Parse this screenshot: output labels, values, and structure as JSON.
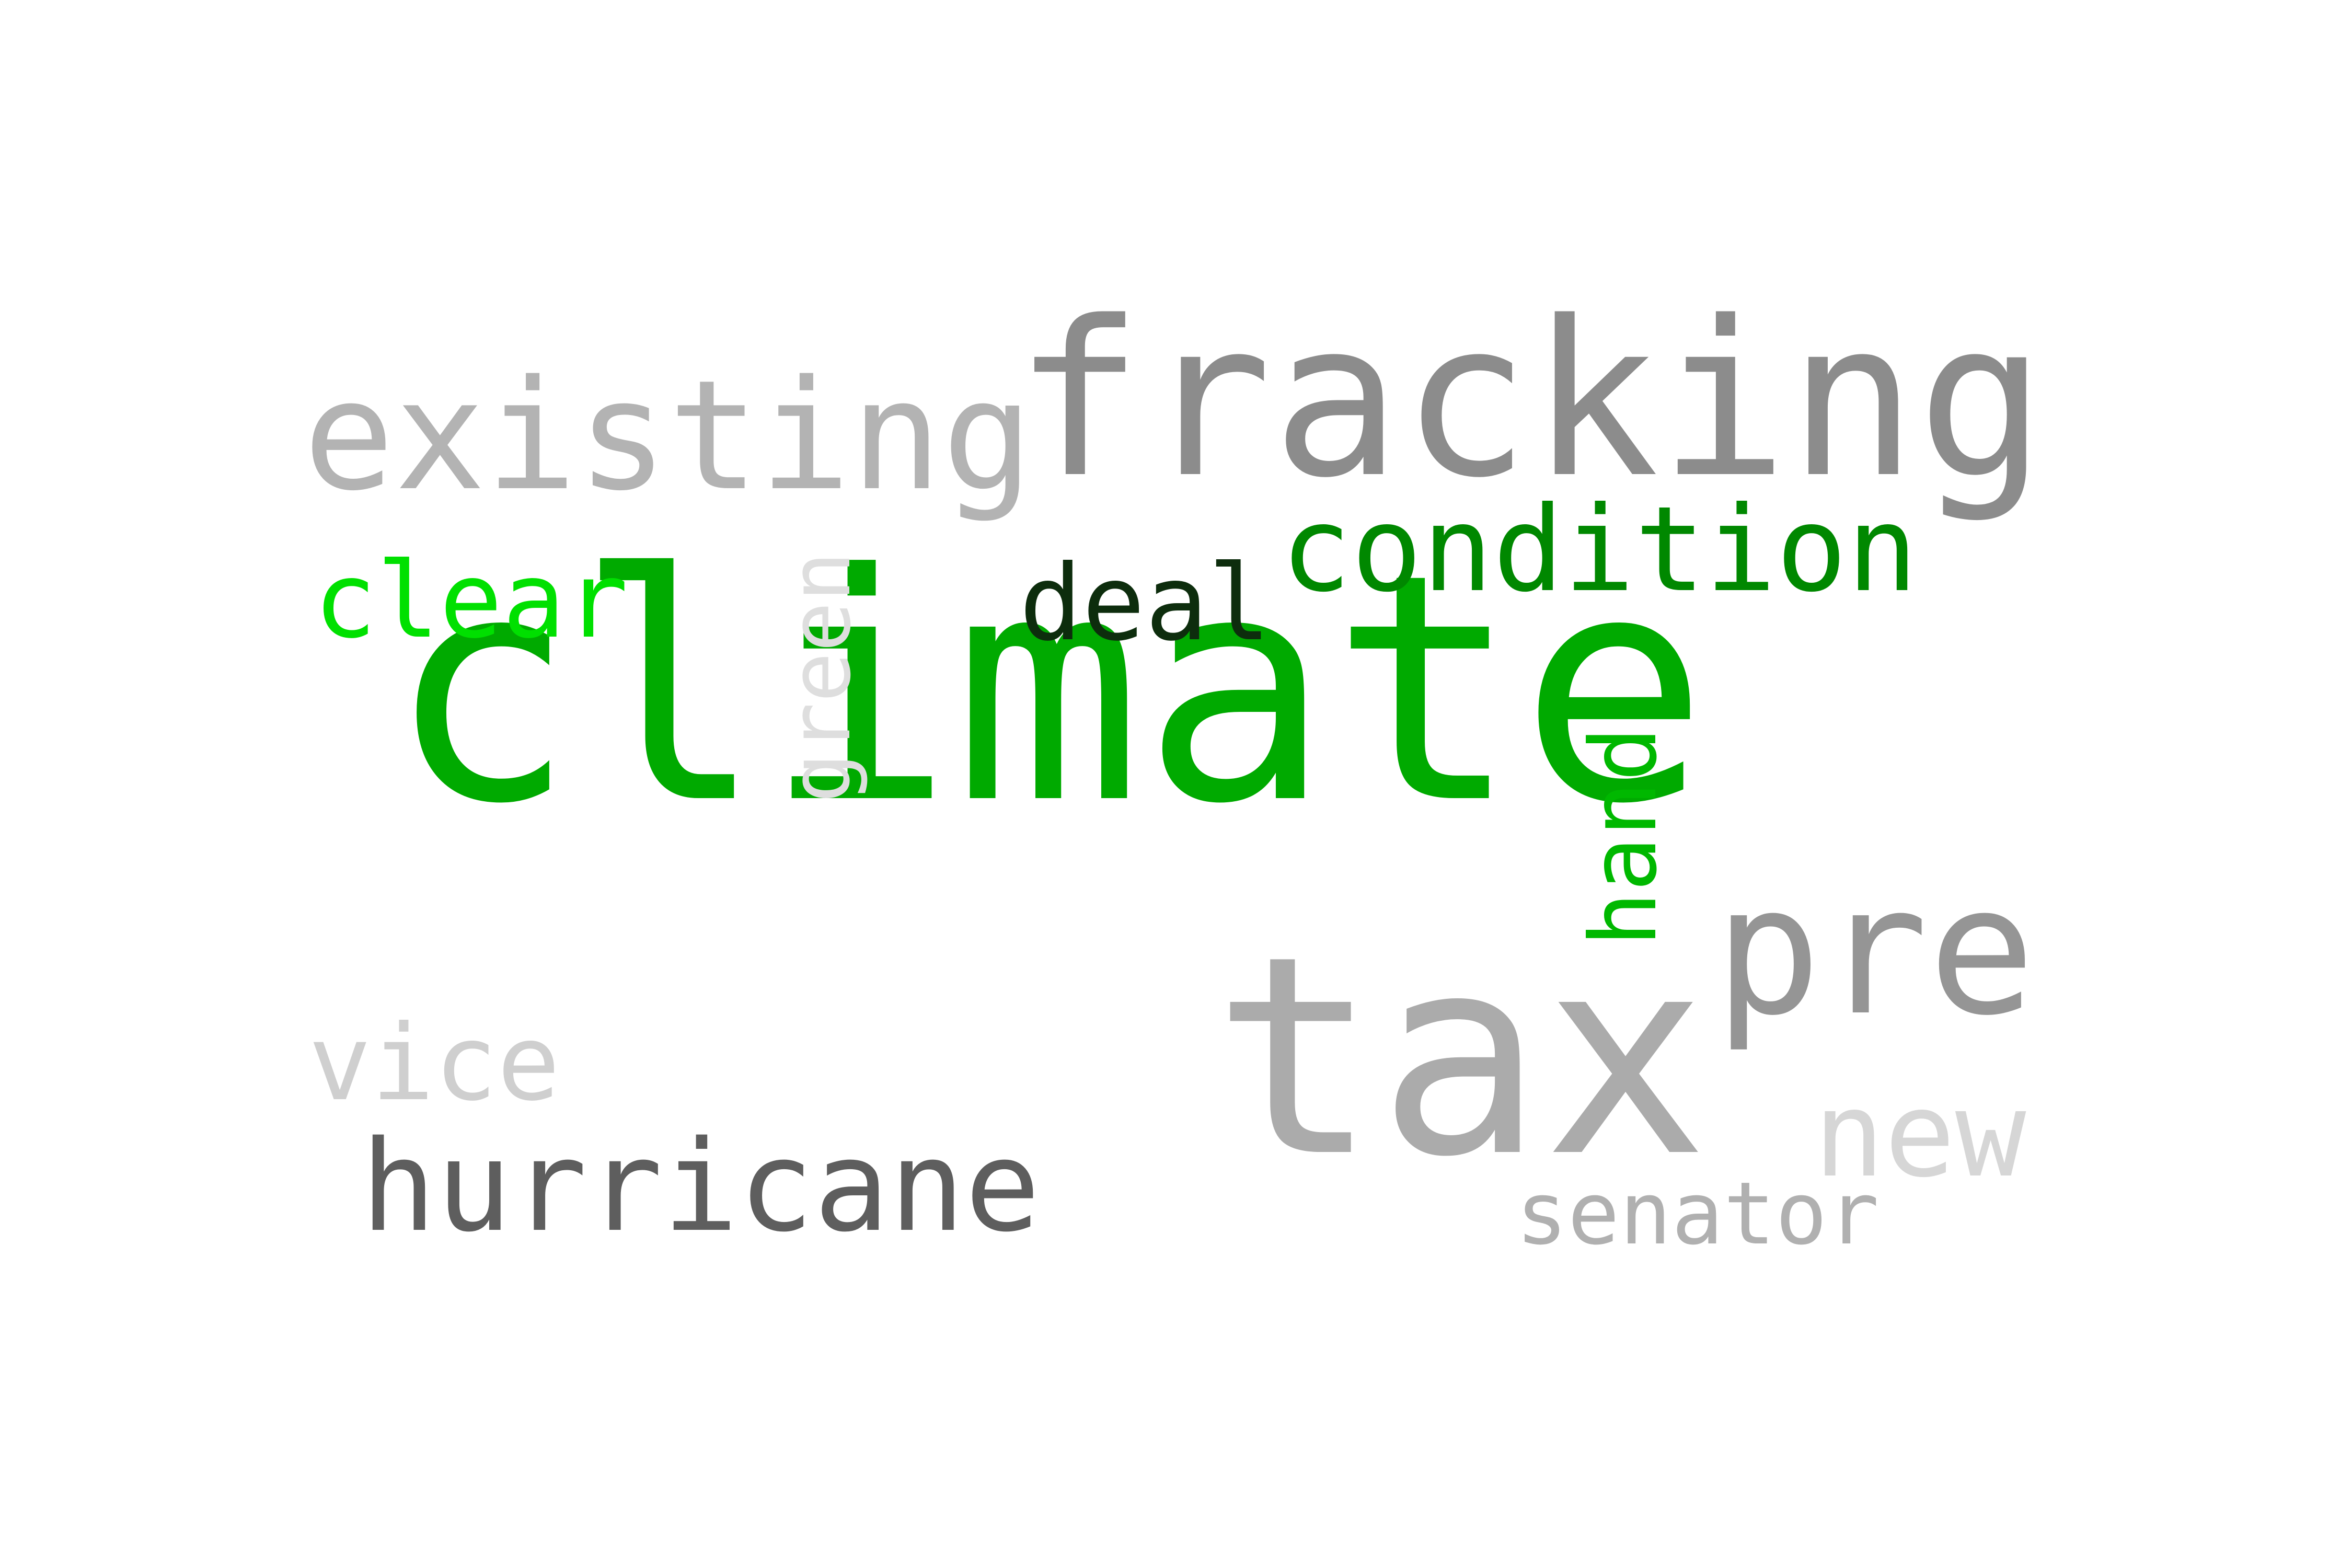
{
  "words": [
    {
      "text": "climate",
      "color": "#00aa00",
      "orientation": "horizontal"
    },
    {
      "text": "fracking",
      "color": "#8c8c8c",
      "orientation": "horizontal"
    },
    {
      "text": "tax",
      "color": "#ababab",
      "orientation": "horizontal"
    },
    {
      "text": "existing",
      "color": "#b3b3b3",
      "orientation": "horizontal"
    },
    {
      "text": "pre",
      "color": "#959595",
      "orientation": "horizontal"
    },
    {
      "text": "condition",
      "color": "#008800",
      "orientation": "horizontal"
    },
    {
      "text": "hurricane",
      "color": "#5e5e5e",
      "orientation": "horizontal"
    },
    {
      "text": "clear",
      "color": "#00e000",
      "orientation": "horizontal"
    },
    {
      "text": "deal",
      "color": "#0d2d0d",
      "orientation": "horizontal"
    },
    {
      "text": "vice",
      "color": "#cfcfcf",
      "orientation": "horizontal"
    },
    {
      "text": "new",
      "color": "#d6d6d6",
      "orientation": "horizontal"
    },
    {
      "text": "senator",
      "color": "#b0b0b0",
      "orientation": "horizontal"
    },
    {
      "text": "green",
      "color": "#dedede",
      "orientation": "vertical"
    },
    {
      "text": "hand",
      "color": "#00b800",
      "orientation": "vertical"
    }
  ]
}
